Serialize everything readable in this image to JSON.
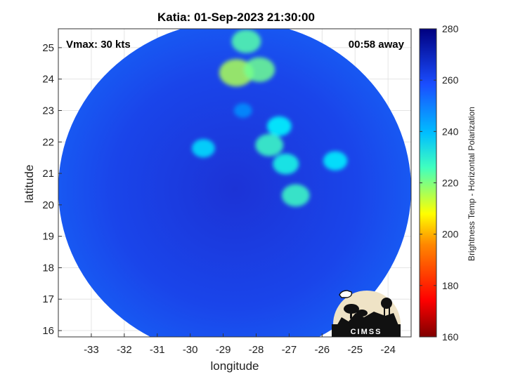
{
  "chart_data": {
    "type": "heatmap",
    "title": "Katia: 01-Sep-2023 21:30:00",
    "xlabel": "longitude",
    "ylabel": "latitude",
    "xlim": [
      -34,
      -23.3
    ],
    "ylim": [
      15.8,
      25.6
    ],
    "xticks": [
      -33,
      -32,
      -31,
      -30,
      -29,
      -28,
      -27,
      -26,
      -25,
      -24
    ],
    "yticks": [
      16,
      17,
      18,
      19,
      20,
      21,
      22,
      23,
      24,
      25
    ],
    "grid": true,
    "annotations": {
      "left": "Vmax: 30 kts",
      "right": "00:58 away"
    },
    "swath": {
      "center": [
        -28.65,
        20.5
      ],
      "semi_axes": [
        5.35,
        5.35
      ]
    },
    "background_value": 262,
    "features": [
      {
        "lon": -28.3,
        "lat": 25.2,
        "value": 225
      },
      {
        "lon": -28.6,
        "lat": 24.2,
        "value": 215
      },
      {
        "lon": -27.9,
        "lat": 24.3,
        "value": 222
      },
      {
        "lon": -27.6,
        "lat": 21.9,
        "value": 228
      },
      {
        "lon": -27.1,
        "lat": 21.3,
        "value": 232
      },
      {
        "lon": -26.8,
        "lat": 20.3,
        "value": 228
      },
      {
        "lon": -27.3,
        "lat": 22.5,
        "value": 235
      },
      {
        "lon": -29.6,
        "lat": 21.8,
        "value": 238
      },
      {
        "lon": -25.6,
        "lat": 21.4,
        "value": 236
      },
      {
        "lon": -28.4,
        "lat": 23.0,
        "value": 248
      }
    ],
    "colorbar": {
      "label": "Brightness Temp - Horizontal Polarization",
      "min": 160,
      "max": 280,
      "ticks": [
        280,
        260,
        240,
        220,
        200,
        180,
        160
      ],
      "colormap": "jet"
    }
  },
  "logo": {
    "text": "CIMSS"
  }
}
